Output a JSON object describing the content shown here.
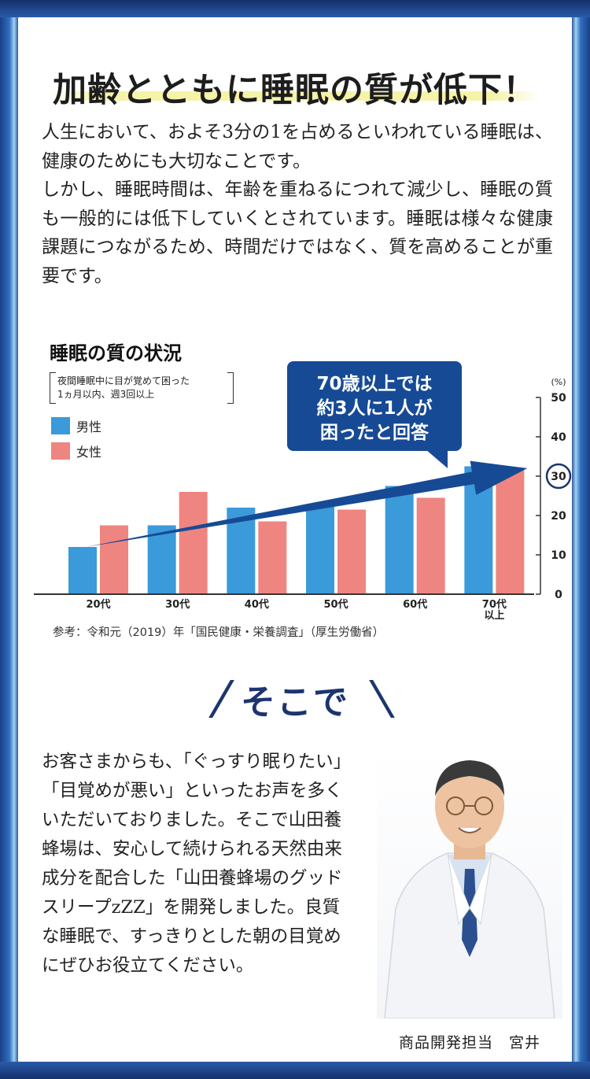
{
  "heading": "加齢とともに睡眠の質が低下！",
  "intro": [
    "人生において、およそ3分の1を占めるといわれている睡眠は、健康のためにも大切なことです。",
    "しかし、睡眠時間は、年齢を重ねるにつれて減少し、睡眠の質も一般的には低下していくとされています。睡眠は様々な健康課題につながるため、時間だけではなく、質を高めることが重要です。"
  ],
  "chart_data": {
    "type": "bar",
    "title": "睡眠の質の状況",
    "condition_lines": [
      "夜間睡眠中に目が覚めて困った",
      "1ヵ月以内、週3回以上"
    ],
    "categories": [
      "20代",
      "30代",
      "40代",
      "50代",
      "60代",
      "70代以上"
    ],
    "category_lines": [
      [
        "20代"
      ],
      [
        "30代"
      ],
      [
        "40代"
      ],
      [
        "50代"
      ],
      [
        "60代"
      ],
      [
        "70代",
        "以上"
      ]
    ],
    "series": [
      {
        "name": "男性",
        "color": "#3b9ad9",
        "values": [
          12,
          17.5,
          22,
          22.5,
          27.5,
          32.5
        ]
      },
      {
        "name": "女性",
        "color": "#ef8580",
        "values": [
          17.5,
          26,
          18.5,
          21.5,
          24.5,
          32
        ]
      }
    ],
    "yunit": "(%)",
    "ylim": [
      0,
      50
    ],
    "yticks": [
      0,
      10,
      20,
      30,
      40,
      50
    ],
    "highlight_tick": 30,
    "callout_lines": [
      "70歳以上では",
      "約3人に1人が",
      "困ったと回答"
    ],
    "source": "参考：令和元（2019）年「国民健康・栄養調査」（厚生労働省）",
    "legend_position": "top-left"
  },
  "sokode": "そこで",
  "body2": "お客さまからも、「ぐっすり眠りたい」「目覚めが悪い」といったお声を多くいただいておりました。そこで山田養蜂場は、安心して続けられる天然由来成分を配合した「山田養蜂場のグッドスリープzZZ」を開発しました。良質な睡眠で、すっきりとした朝の目覚めにぜひお役立てください。",
  "caption": "商品開発担当　宮井"
}
